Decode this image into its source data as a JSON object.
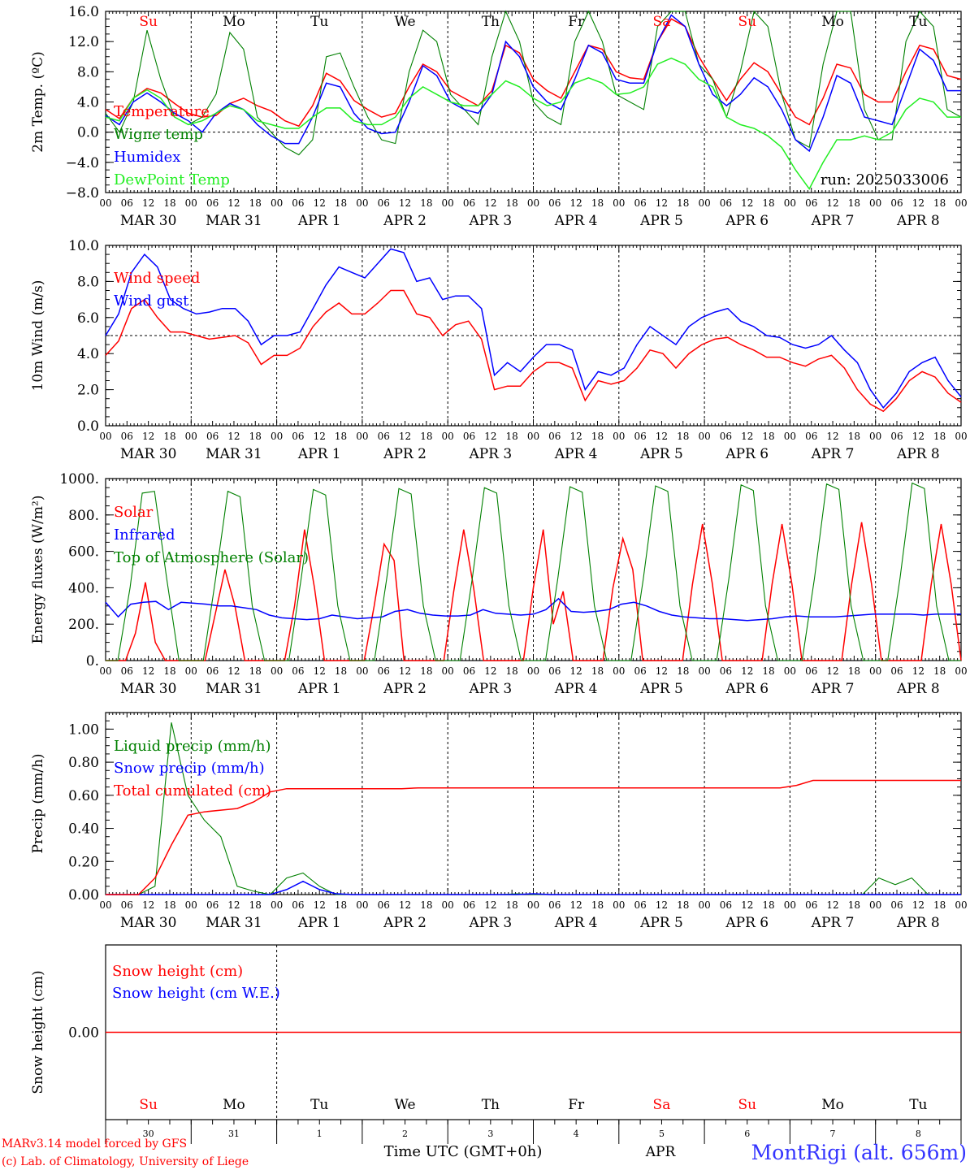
{
  "colors": {
    "red": "#ff0000",
    "green": "#008000",
    "blue": "#0000ff",
    "lightgreen": "#22ee22",
    "black": "#000000",
    "footer_blue": "#3333ff"
  },
  "time_axis": {
    "hours": [
      "00",
      "06",
      "12",
      "18"
    ],
    "end_hour": "00",
    "dates": [
      "MAR 30",
      "MAR 31",
      "APR  1",
      "APR  2",
      "APR  3",
      "APR  4",
      "APR  5",
      "APR  6",
      "APR  7",
      "APR  8"
    ],
    "days": [
      {
        "label": "Su",
        "color": "red"
      },
      {
        "label": "Mo",
        "color": "black"
      },
      {
        "label": "Tu",
        "color": "black"
      },
      {
        "label": "We",
        "color": "black"
      },
      {
        "label": "Th",
        "color": "black"
      },
      {
        "label": "Fr",
        "color": "black"
      },
      {
        "label": "Sa",
        "color": "red"
      },
      {
        "label": "Su",
        "color": "red"
      },
      {
        "label": "Mo",
        "color": "black"
      },
      {
        "label": "Tu",
        "color": "black"
      }
    ],
    "day_numbers": [
      "30",
      "31",
      "1",
      "2",
      "3",
      "4",
      "5",
      "6",
      "7",
      "8"
    ]
  },
  "run_label": "run: 2025033006",
  "footer": {
    "model_line1": "MARv3.14 model forced by GFS",
    "model_line2": "(c) Lab. of Climatology, University of Liege",
    "time_label": "Time UTC (GMT+0h)",
    "month_label": "APR",
    "station": "MontRigi (alt. 656m)"
  },
  "chart_data": [
    {
      "type": "line",
      "ylabel": "2m Temp. (ºC)",
      "ylim": [
        -8,
        16
      ],
      "yticks": [
        "16.0",
        "12.0",
        "8.0",
        "4.0",
        "0.0",
        "−4.0",
        "−8.0"
      ],
      "ytick_values": [
        16,
        12,
        8,
        4,
        0,
        -4,
        -8
      ],
      "ref_line": 0,
      "series": [
        {
          "name": "Temperature",
          "color": "red",
          "values": [
            3,
            1.8,
            4.5,
            5.8,
            5.2,
            3.8,
            2.5,
            2,
            2.2,
            3.8,
            4.5,
            3.5,
            2.8,
            1.5,
            0.8,
            3.5,
            7.8,
            6.8,
            4.2,
            3,
            2,
            2.5,
            6,
            9,
            8,
            5.5,
            4.5,
            3.5,
            5.5,
            11.5,
            10.5,
            7,
            5.5,
            4.5,
            8,
            11.5,
            11,
            8,
            7.2,
            7,
            12,
            15,
            14,
            10,
            7,
            4.2,
            7,
            9.2,
            8,
            5,
            2,
            1,
            4.5,
            9,
            8.5,
            5,
            4,
            4,
            8,
            11.5,
            11,
            7.5,
            7
          ]
        },
        {
          "name": "Wigne temp",
          "color": "green",
          "values": [
            2.5,
            0,
            4,
            13.5,
            7,
            2,
            1,
            2,
            5,
            13.2,
            11,
            2,
            0,
            -2,
            -3,
            -1,
            10,
            10.5,
            6,
            2,
            -1,
            -1.5,
            8,
            13.5,
            12,
            5,
            3,
            1,
            10,
            16,
            12,
            4,
            2,
            1,
            12,
            16,
            12,
            5,
            4,
            3,
            14,
            18,
            16,
            9,
            7,
            2,
            8,
            17,
            14,
            5,
            -1,
            -2,
            9,
            18,
            16,
            3,
            -1,
            -1,
            12,
            18,
            14,
            3,
            2
          ]
        },
        {
          "name": "Humidex",
          "color": "blue",
          "values": [
            2.2,
            1,
            4,
            5.2,
            4,
            2.5,
            1.5,
            0,
            2.5,
            3.8,
            3,
            1,
            -0.5,
            -1.5,
            -1.5,
            2,
            6.5,
            6,
            2.5,
            0.5,
            -0.2,
            0,
            4,
            8.8,
            7.5,
            4,
            3,
            2.5,
            5,
            12,
            10,
            6,
            4,
            3,
            7,
            11.5,
            10.5,
            7,
            6.5,
            6.5,
            12,
            15.5,
            14,
            9,
            5,
            3.5,
            5,
            7.2,
            6,
            3,
            -1,
            -2.5,
            2,
            7.5,
            6.5,
            2,
            1.5,
            1,
            6,
            11,
            9.5,
            5.5,
            5.5
          ]
        },
        {
          "name": "DewPoint Temp",
          "color": "lightgreen",
          "values": [
            2,
            1.5,
            4.5,
            5.6,
            4.5,
            2,
            1,
            1.5,
            2.5,
            3.5,
            3,
            1.5,
            1,
            0.5,
            0.5,
            2,
            3.2,
            3.2,
            1.5,
            1,
            1,
            2,
            4.5,
            6,
            5,
            4,
            3.5,
            3.5,
            5,
            6.8,
            6,
            4.5,
            3.5,
            4,
            6.5,
            7.2,
            6.5,
            5,
            5.2,
            6,
            9,
            9.8,
            9,
            7,
            6,
            2,
            1,
            0.5,
            -0.5,
            -2,
            -5,
            -7.5,
            -4,
            -1,
            -1,
            -0.5,
            -1,
            0,
            3,
            4.5,
            4,
            2,
            2
          ]
        }
      ]
    },
    {
      "type": "line",
      "ylabel": "10m Wind (m/s)",
      "ylim": [
        0,
        10
      ],
      "yticks": [
        "10.0",
        "8.0",
        "6.0",
        "4.0",
        "2.0",
        "0.0"
      ],
      "ytick_values": [
        10,
        8,
        6,
        4,
        2,
        0
      ],
      "ref_line": 5,
      "series": [
        {
          "name": "Wind speed",
          "color": "red",
          "values": [
            3.9,
            4.7,
            6.5,
            7,
            6,
            5.2,
            5.2,
            5,
            4.8,
            4.9,
            5,
            4.6,
            3.4,
            3.9,
            3.9,
            4.3,
            5.5,
            6.3,
            6.8,
            6.2,
            6.2,
            6.8,
            7.5,
            7.5,
            6.2,
            6,
            5,
            5.6,
            5.8,
            4.8,
            2,
            2.2,
            2.2,
            3,
            3.5,
            3.5,
            3.2,
            1.4,
            2.5,
            2.3,
            2.5,
            3.2,
            4.2,
            4,
            3.2,
            4,
            4.5,
            4.8,
            4.9,
            4.5,
            4.2,
            3.8,
            3.8,
            3.5,
            3.3,
            3.7,
            3.9,
            3.2,
            2,
            1.2,
            0.8,
            1.5,
            2.5,
            3,
            2.7,
            1.8,
            1.3
          ]
        },
        {
          "name": "Wind gust",
          "color": "blue",
          "values": [
            5,
            6.2,
            8.5,
            9.5,
            8.8,
            7,
            6.5,
            6.2,
            6.3,
            6.5,
            6.5,
            5.8,
            4.5,
            5,
            5,
            5.2,
            6.5,
            7.8,
            8.8,
            8.5,
            8.2,
            9,
            9.8,
            9.6,
            8,
            8.2,
            7,
            7.2,
            7.2,
            6.5,
            2.8,
            3.5,
            3,
            3.8,
            4.5,
            4.5,
            4.2,
            2,
            3,
            2.8,
            3.2,
            4.5,
            5.5,
            5,
            4.5,
            5.5,
            6,
            6.3,
            6.5,
            5.8,
            5.5,
            5,
            4.9,
            4.5,
            4.3,
            4.5,
            5,
            4.2,
            3.5,
            2,
            1,
            1.8,
            3,
            3.5,
            3.8,
            2.5,
            1.6
          ]
        }
      ]
    },
    {
      "type": "line",
      "ylabel": "Energy fluxes (W/m²)",
      "ylim": [
        0,
        1000
      ],
      "yticks": [
        "1000.",
        "800.",
        "600.",
        "400.",
        "200.",
        "0."
      ],
      "ytick_values": [
        1000,
        800,
        600,
        400,
        200,
        0
      ],
      "series": [
        {
          "name": "Solar",
          "color": "red",
          "values": [
            0,
            0,
            0,
            150,
            430,
            100,
            0,
            0,
            0,
            0,
            0,
            250,
            500,
            300,
            0,
            0,
            0,
            0,
            0,
            300,
            720,
            400,
            0,
            0,
            0,
            0,
            0,
            300,
            640,
            550,
            0,
            0,
            0,
            0,
            0,
            380,
            720,
            400,
            0,
            0,
            0,
            0,
            0,
            400,
            720,
            200,
            380,
            0,
            0,
            0,
            0,
            400,
            670,
            500,
            0,
            0,
            0,
            0,
            0,
            420,
            750,
            420,
            0,
            0,
            0,
            0,
            0,
            420,
            750,
            420,
            0,
            0,
            0,
            0,
            0,
            420,
            760,
            420,
            0,
            0,
            0,
            0,
            0,
            420,
            750,
            420,
            0
          ]
        },
        {
          "name": "Infrared",
          "color": "blue",
          "values": [
            320,
            240,
            310,
            320,
            325,
            280,
            320,
            315,
            310,
            300,
            300,
            290,
            280,
            250,
            235,
            230,
            225,
            230,
            250,
            240,
            230,
            235,
            240,
            270,
            280,
            260,
            250,
            245,
            245,
            250,
            280,
            260,
            255,
            250,
            255,
            280,
            340,
            270,
            265,
            270,
            280,
            310,
            320,
            300,
            270,
            250,
            240,
            235,
            230,
            230,
            225,
            220,
            225,
            230,
            240,
            245,
            240,
            240,
            240,
            245,
            250,
            255,
            255,
            255,
            255,
            250,
            255,
            255,
            255
          ]
        },
        {
          "name": "Top of Atmosphere (Solar)",
          "color": "green",
          "values": [
            0,
            0,
            400,
            920,
            930,
            450,
            0,
            0,
            0,
            450,
            930,
            900,
            300,
            0,
            0,
            0,
            450,
            940,
            910,
            300,
            0,
            0,
            0,
            450,
            945,
            915,
            300,
            0,
            0,
            0,
            450,
            950,
            920,
            300,
            0,
            0,
            0,
            450,
            955,
            925,
            300,
            0,
            0,
            0,
            450,
            960,
            930,
            300,
            0,
            0,
            0,
            450,
            965,
            935,
            300,
            0,
            0,
            0,
            450,
            970,
            940,
            300,
            0,
            0,
            0,
            450,
            975,
            945,
            300,
            0,
            0
          ]
        }
      ]
    },
    {
      "type": "line",
      "ylabel": "Precip (mm/h)",
      "ylim": [
        0,
        1.1
      ],
      "yticks": [
        "1.00",
        "0.80",
        "0.60",
        "0.40",
        "0.20",
        "0.00"
      ],
      "ytick_values": [
        1.0,
        0.8,
        0.6,
        0.4,
        0.2,
        0.0
      ],
      "series": [
        {
          "name": "Liquid precip (mm/h)",
          "color": "green",
          "values": [
            0,
            0,
            0,
            0.05,
            1.04,
            0.6,
            0.45,
            0.35,
            0.05,
            0.02,
            0,
            0.1,
            0.13,
            0.05,
            0,
            0,
            0,
            0,
            0,
            0,
            0,
            0,
            0,
            0,
            0,
            0.005,
            0,
            0,
            0,
            0,
            0,
            0,
            0,
            0,
            0,
            0,
            0,
            0,
            0,
            0,
            0,
            0,
            0,
            0,
            0,
            0,
            0,
            0.1,
            0.06,
            0.1,
            0,
            0,
            0
          ]
        },
        {
          "name": "Snow precip (mm/h)",
          "color": "blue",
          "values": [
            0,
            0,
            0,
            0,
            0,
            0,
            0,
            0,
            0,
            0,
            0,
            0.03,
            0.08,
            0.03,
            0.005,
            0,
            0,
            0,
            0,
            0,
            0,
            0,
            0,
            0,
            0,
            0,
            0.005,
            0,
            0,
            0,
            0,
            0,
            0,
            0,
            0,
            0,
            0,
            0,
            0,
            0,
            0,
            0,
            0,
            0,
            0,
            0,
            0,
            0,
            0,
            0,
            0,
            0,
            0
          ]
        },
        {
          "name": "Total cumulated (cm)",
          "color": "red",
          "values": [
            0,
            0,
            0,
            0.1,
            0.3,
            0.48,
            0.5,
            0.51,
            0.52,
            0.56,
            0.62,
            0.64,
            0.64,
            0.64,
            0.64,
            0.64,
            0.64,
            0.64,
            0.64,
            0.645,
            0.645,
            0.645,
            0.645,
            0.645,
            0.645,
            0.645,
            0.645,
            0.645,
            0.645,
            0.645,
            0.645,
            0.645,
            0.645,
            0.645,
            0.645,
            0.645,
            0.645,
            0.645,
            0.645,
            0.645,
            0.645,
            0.645,
            0.66,
            0.69,
            0.69,
            0.69,
            0.69,
            0.69,
            0.69,
            0.69,
            0.69,
            0.69,
            0.69
          ]
        }
      ]
    },
    {
      "type": "line",
      "ylabel": "Snow height (cm)",
      "ylim": [
        -1,
        1
      ],
      "yticks": [
        "0.00"
      ],
      "ytick_values": [
        0
      ],
      "series": [
        {
          "name": "Snow height (cm)",
          "color": "red",
          "values": [
            0,
            0
          ]
        },
        {
          "name": "Snow height (cm W.E.)",
          "color": "blue",
          "values": []
        }
      ]
    }
  ]
}
